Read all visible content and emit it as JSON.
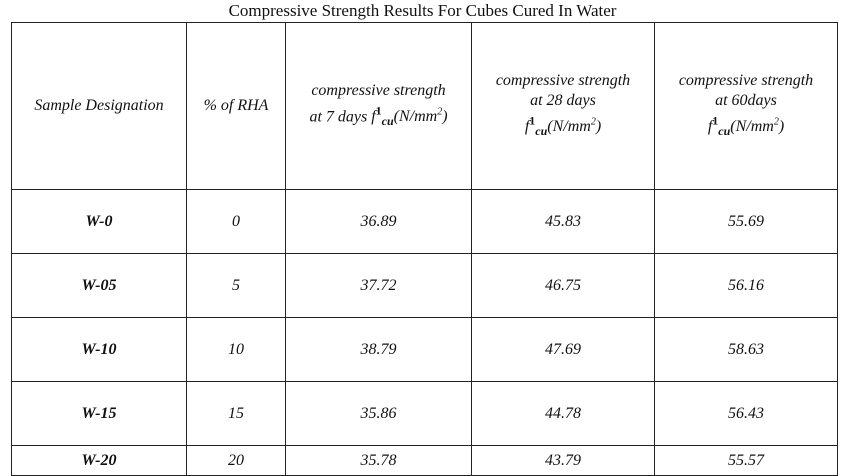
{
  "title": "Compressive Strength Results For Cubes Cured In Water",
  "headers": {
    "sample": "Sample Designation",
    "rha": "% of RHA",
    "d7": {
      "line1": "compressive strength",
      "line2": "at 7 days",
      "symbol": "f",
      "sup": "1",
      "sub": "cu",
      "unit": "(N/mm",
      "unit_sup": "2",
      "unit_close": ")"
    },
    "d28": {
      "line1": "compressive strength",
      "line2": "at 28 days",
      "symbol": "f",
      "sup": "1",
      "sub": "cu",
      "unit": "(N/mm",
      "unit_sup": "2",
      "unit_close": ")"
    },
    "d60": {
      "line1": "compressive strength",
      "line2": "at 60days",
      "symbol": "f",
      "sup": "1",
      "sub": "cu",
      "unit": "(N/mm",
      "unit_sup": "2",
      "unit_close": ")"
    }
  },
  "rows": [
    {
      "sample": "W-0",
      "rha": "0",
      "d7": "36.89",
      "d28": "45.83",
      "d60": "55.69"
    },
    {
      "sample": "W-05",
      "rha": "5",
      "d7": "37.72",
      "d28": "46.75",
      "d60": "56.16"
    },
    {
      "sample": "W-10",
      "rha": "10",
      "d7": "38.79",
      "d28": "47.69",
      "d60": "58.63"
    },
    {
      "sample": "W-15",
      "rha": "15",
      "d7": "35.86",
      "d28": "44.78",
      "d60": "56.43"
    },
    {
      "sample": "W-20",
      "rha": "20",
      "d7": "35.78",
      "d28": "43.79",
      "d60": "55.57"
    }
  ]
}
